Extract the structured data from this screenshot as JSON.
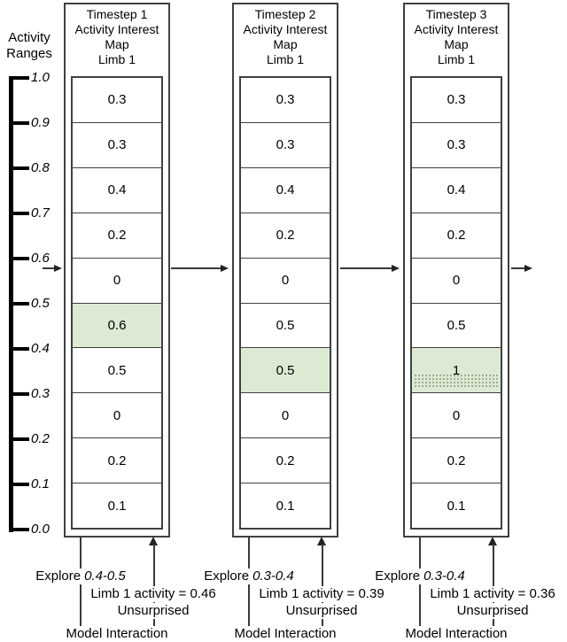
{
  "figure": {
    "axis": {
      "title_line1": "Activity",
      "title_line2": "Ranges",
      "tick_labels": [
        "1.0",
        "0.9",
        "0.8",
        "0.7",
        "0.6",
        "0.5",
        "0.4",
        "0.3",
        "0.2",
        "0.1",
        "0.0"
      ]
    },
    "columns": [
      {
        "title1": "Timestep 1",
        "title2": "Activity Interest",
        "title3": "Map",
        "title4": "Limb 1",
        "cells": [
          "0.3",
          "0.3",
          "0.4",
          "0.2",
          "0",
          "0.6",
          "0.5",
          "0",
          "0.2",
          "0.1"
        ],
        "highlight_index": 5,
        "stipple": false,
        "explore_label": "Explore",
        "explore_range": "0.4-0.5",
        "activity_text": "Limb 1 activity = 0.46",
        "surprise_text": "Unsurprised",
        "interaction_text": "Model Interaction"
      },
      {
        "title1": "Timestep 2",
        "title2": "Activity Interest",
        "title3": "Map",
        "title4": "Limb 1",
        "cells": [
          "0.3",
          "0.3",
          "0.4",
          "0.2",
          "0",
          "0.5",
          "0.5",
          "0",
          "0.2",
          "0.1"
        ],
        "highlight_index": 6,
        "stipple": false,
        "explore_label": "Explore",
        "explore_range": "0.3-0.4",
        "activity_text": "Limb 1 activity = 0.39",
        "surprise_text": "Unsurprised",
        "interaction_text": "Model Interaction"
      },
      {
        "title1": "Timestep 3",
        "title2": "Activity Interest",
        "title3": "Map",
        "title4": "Limb 1",
        "cells": [
          "0.3",
          "0.3",
          "0.4",
          "0.2",
          "0",
          "0.5",
          "1",
          "0",
          "0.2",
          "0.1"
        ],
        "highlight_index": 6,
        "stipple": true,
        "explore_label": "Explore",
        "explore_range": "0.3-0.4",
        "activity_text": "Limb 1 activity = 0.36",
        "surprise_text": "Unsurprised",
        "interaction_text": "Model Interaction"
      }
    ],
    "colors": {
      "highlight_green": "#dcead3",
      "line_dark": "#3a3a3a"
    }
  }
}
